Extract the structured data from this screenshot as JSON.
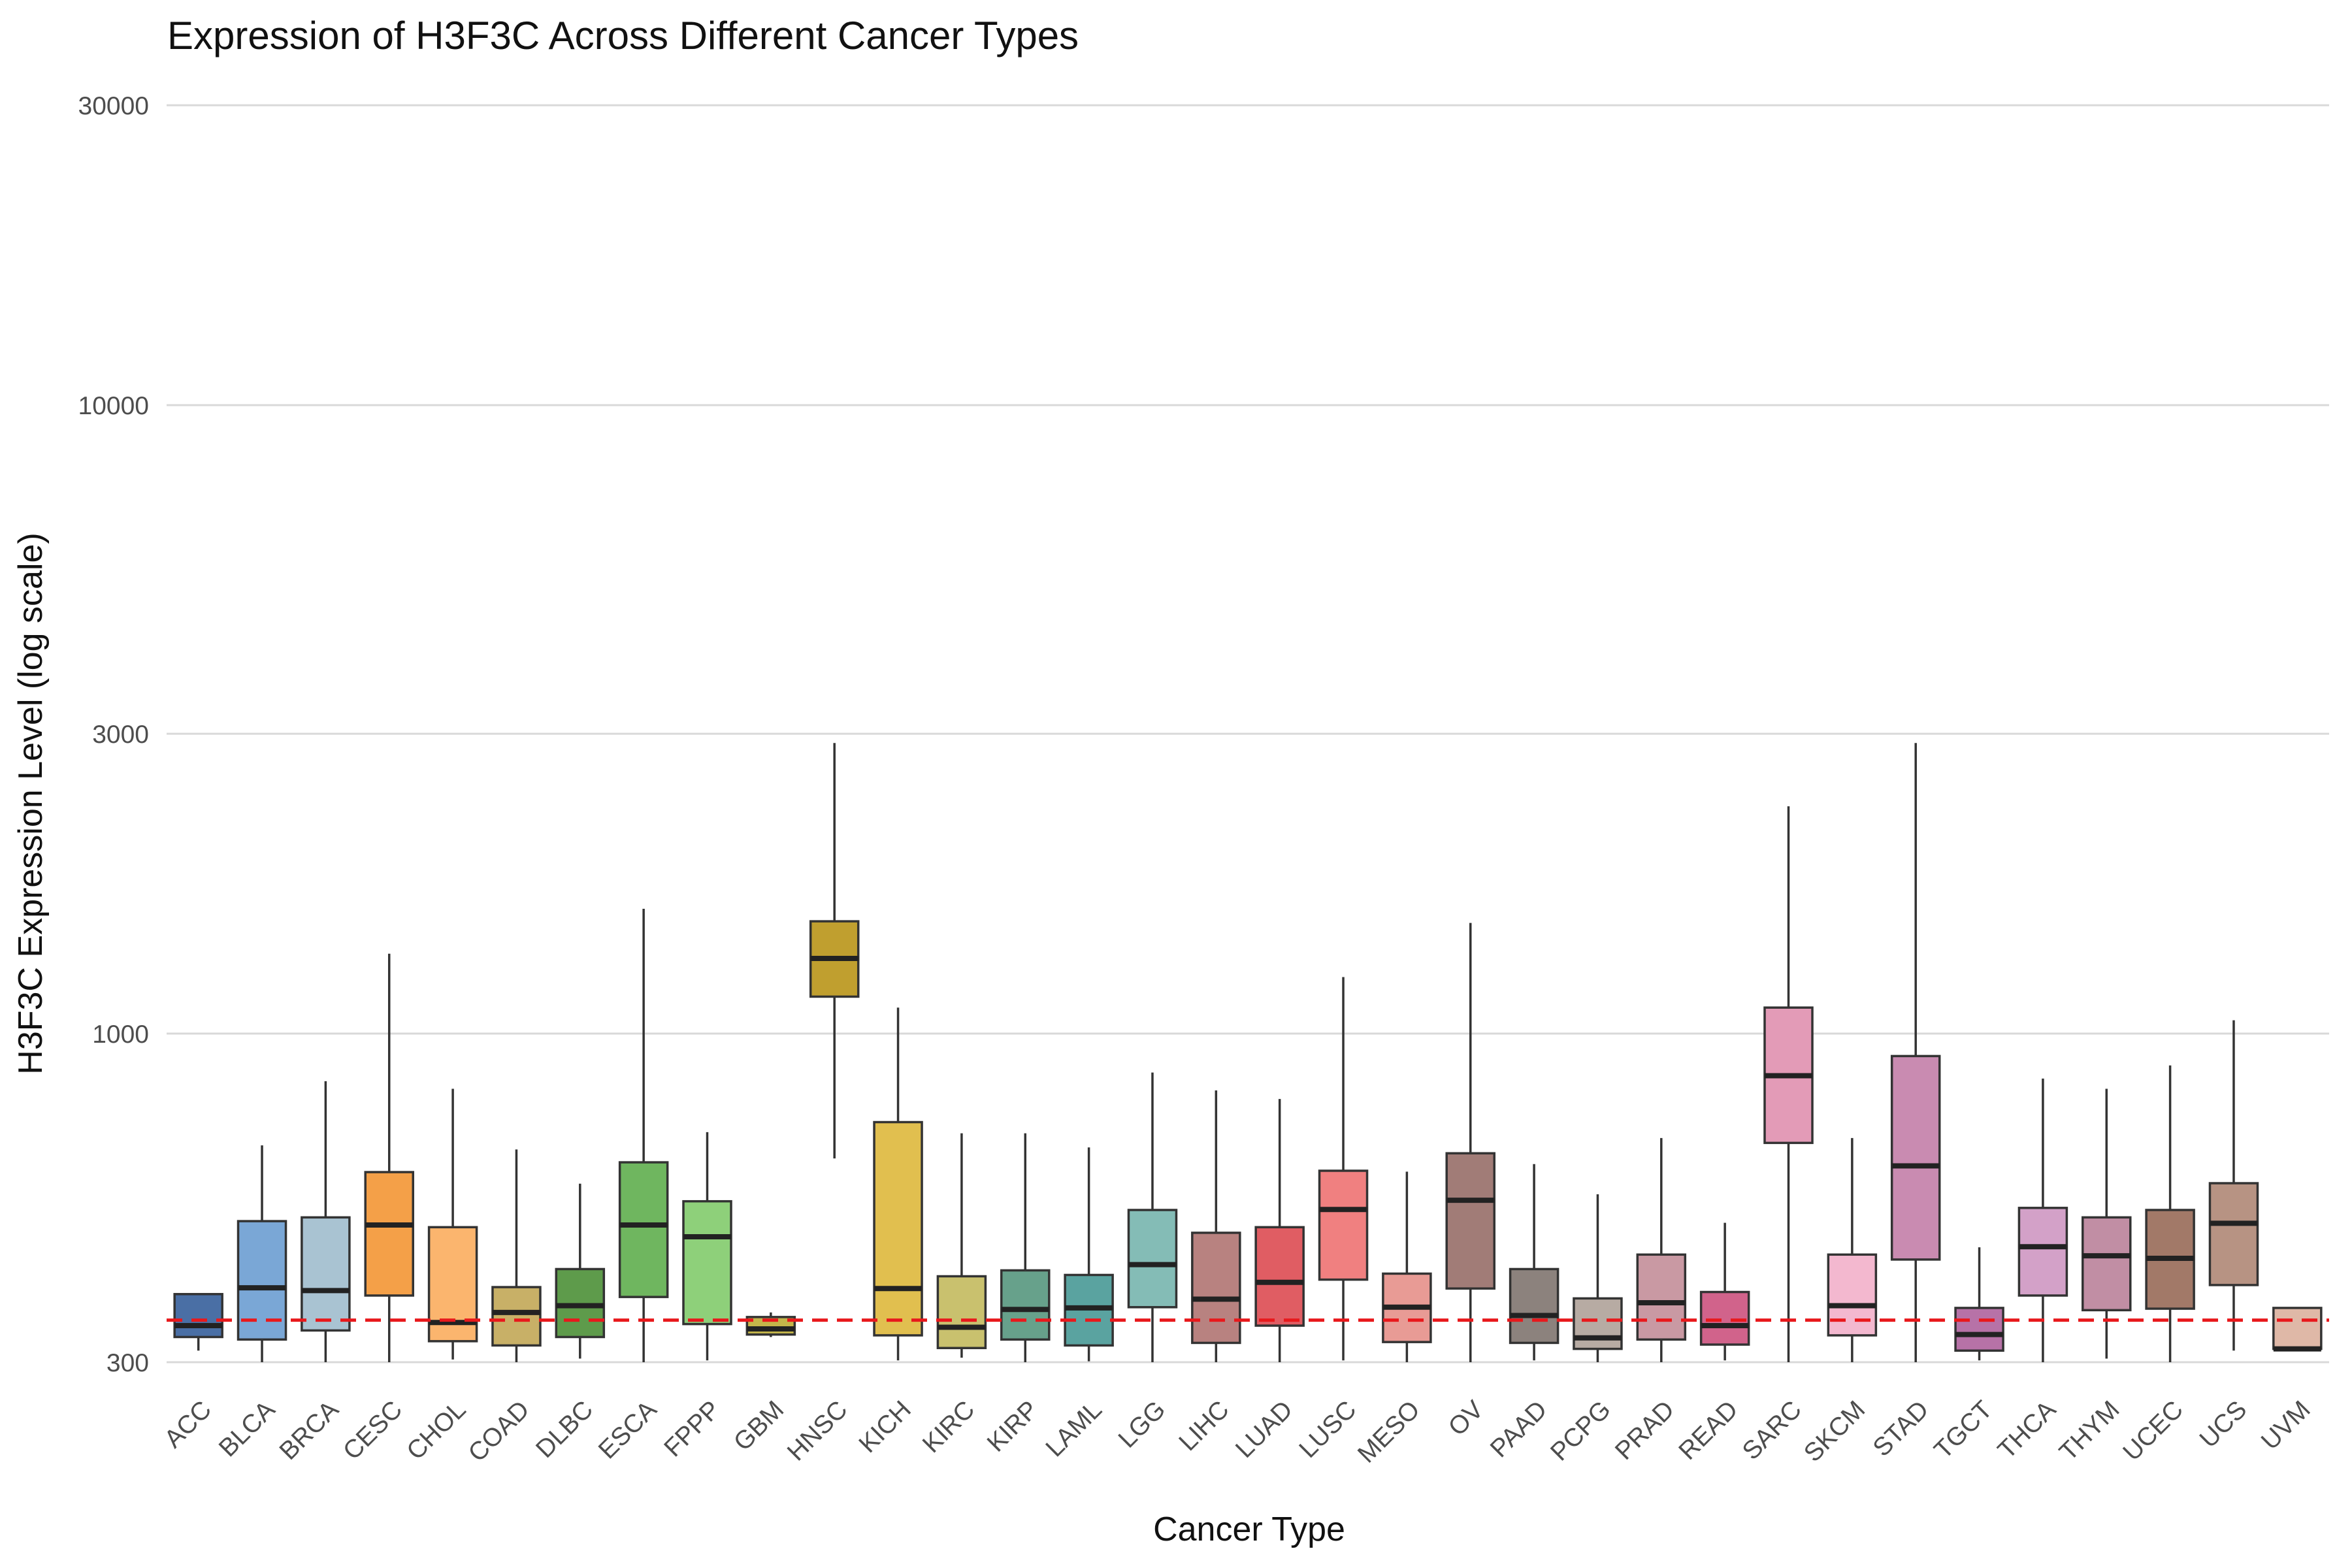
{
  "chart_data": {
    "type": "box",
    "title": "Expression of H3F3C Across Different Cancer Types",
    "xlabel": "Cancer Type",
    "ylabel": "H3F3C Expression Level (log scale)",
    "y_scale": "log",
    "ylim": [
      300,
      36000
    ],
    "y_ticks": [
      300,
      1000,
      3000,
      10000,
      30000
    ],
    "grid": "horizontal",
    "reference_line": {
      "y": 350,
      "style": "dashed",
      "color": "#e8191c"
    },
    "categories": [
      "ACC",
      "BLCA",
      "BRCA",
      "CESC",
      "CHOL",
      "COAD",
      "DLBC",
      "ESCA",
      "FPPP",
      "GBM",
      "HNSC",
      "KICH",
      "KIRC",
      "KIRP",
      "LAML",
      "LGG",
      "LIHC",
      "LUAD",
      "LUSC",
      "MESO",
      "OV",
      "PAAD",
      "PCPG",
      "PRAD",
      "READ",
      "SARC",
      "SKCM",
      "STAD",
      "TGCT",
      "THCA",
      "THYM",
      "UCEC",
      "UCS",
      "UVM"
    ],
    "series": [
      {
        "category": "ACC",
        "min": 313,
        "q1": 329,
        "median": 343,
        "q3": 385,
        "max": 385,
        "color": "#4a6fa5"
      },
      {
        "category": "BLCA",
        "min": 300,
        "q1": 326,
        "median": 394,
        "q3": 503,
        "max": 664,
        "color": "#7aa7d6"
      },
      {
        "category": "BRCA",
        "min": 300,
        "q1": 337,
        "median": 390,
        "q3": 510,
        "max": 840,
        "color": "#a9c3d2"
      },
      {
        "category": "CESC",
        "min": 300,
        "q1": 383,
        "median": 496,
        "q3": 602,
        "max": 1340,
        "color": "#f4a048"
      },
      {
        "category": "CHOL",
        "min": 303,
        "q1": 324,
        "median": 347,
        "q3": 492,
        "max": 817,
        "color": "#fbb56e"
      },
      {
        "category": "COAD",
        "min": 300,
        "q1": 319,
        "median": 360,
        "q3": 395,
        "max": 654,
        "color": "#c8b067"
      },
      {
        "category": "DLBC",
        "min": 304,
        "q1": 329,
        "median": 369,
        "q3": 422,
        "max": 577,
        "color": "#5e9b4b"
      },
      {
        "category": "ESCA",
        "min": 300,
        "q1": 381,
        "median": 496,
        "q3": 624,
        "max": 1580,
        "color": "#6fb65f"
      },
      {
        "category": "FPPP",
        "min": 302,
        "q1": 345,
        "median": 475,
        "q3": 541,
        "max": 697,
        "color": "#8ed07a"
      },
      {
        "category": "GBM",
        "min": 329,
        "q1": 332,
        "median": 339,
        "q3": 354,
        "max": 360,
        "color": "#c4b64a"
      },
      {
        "category": "HNSC",
        "min": 633,
        "q1": 1145,
        "median": 1317,
        "q3": 1509,
        "max": 2900,
        "color": "#c09f2f"
      },
      {
        "category": "KICH",
        "min": 302,
        "q1": 331,
        "median": 393,
        "q3": 723,
        "max": 1100,
        "color": "#e1bf4f"
      },
      {
        "category": "KIRC",
        "min": 305,
        "q1": 316,
        "median": 341,
        "q3": 411,
        "max": 694,
        "color": "#c9c16e"
      },
      {
        "category": "KIRP",
        "min": 300,
        "q1": 326,
        "median": 364,
        "q3": 420,
        "max": 694,
        "color": "#67a18b"
      },
      {
        "category": "LAML",
        "min": 301,
        "q1": 319,
        "median": 366,
        "q3": 413,
        "max": 659,
        "color": "#5aa3a0"
      },
      {
        "category": "LGG",
        "min": 300,
        "q1": 367,
        "median": 429,
        "q3": 524,
        "max": 867,
        "color": "#84bcb6"
      },
      {
        "category": "LIHC",
        "min": 300,
        "q1": 322,
        "median": 378,
        "q3": 482,
        "max": 812,
        "color": "#b88280"
      },
      {
        "category": "LUAD",
        "min": 300,
        "q1": 343,
        "median": 402,
        "q3": 492,
        "max": 787,
        "color": "#e05d63"
      },
      {
        "category": "LUSC",
        "min": 302,
        "q1": 406,
        "median": 525,
        "q3": 605,
        "max": 1230,
        "color": "#f08080"
      },
      {
        "category": "MESO",
        "min": 300,
        "q1": 323,
        "median": 367,
        "q3": 415,
        "max": 603,
        "color": "#e89b95"
      },
      {
        "category": "OV",
        "min": 300,
        "q1": 393,
        "median": 543,
        "q3": 645,
        "max": 1500,
        "color": "#a17c77"
      },
      {
        "category": "PAAD",
        "min": 302,
        "q1": 322,
        "median": 356,
        "q3": 422,
        "max": 620,
        "color": "#8c827d"
      },
      {
        "category": "PCPG",
        "min": 300,
        "q1": 315,
        "median": 328,
        "q3": 379,
        "max": 555,
        "color": "#b7aba3"
      },
      {
        "category": "PRAD",
        "min": 300,
        "q1": 326,
        "median": 373,
        "q3": 445,
        "max": 682,
        "color": "#c999a3"
      },
      {
        "category": "READ",
        "min": 302,
        "q1": 320,
        "median": 343,
        "q3": 388,
        "max": 500,
        "color": "#d1638b"
      },
      {
        "category": "SARC",
        "min": 300,
        "q1": 670,
        "median": 857,
        "q3": 1100,
        "max": 2300,
        "color": "#e39bb7"
      },
      {
        "category": "SKCM",
        "min": 300,
        "q1": 331,
        "median": 369,
        "q3": 445,
        "max": 682,
        "color": "#f3b8cf"
      },
      {
        "category": "STAD",
        "min": 300,
        "q1": 437,
        "median": 616,
        "q3": 921,
        "max": 2900,
        "color": "#c98bb1"
      },
      {
        "category": "TGCT",
        "min": 302,
        "q1": 313,
        "median": 332,
        "q3": 366,
        "max": 457,
        "color": "#b772a7"
      },
      {
        "category": "THCA",
        "min": 300,
        "q1": 383,
        "median": 458,
        "q3": 528,
        "max": 848,
        "color": "#d3a1c8"
      },
      {
        "category": "THYM",
        "min": 304,
        "q1": 363,
        "median": 443,
        "q3": 510,
        "max": 817,
        "color": "#c18ea4"
      },
      {
        "category": "UCEC",
        "min": 300,
        "q1": 365,
        "median": 439,
        "q3": 524,
        "max": 890,
        "color": "#a27968"
      },
      {
        "category": "UCS",
        "min": 313,
        "q1": 398,
        "median": 499,
        "q3": 578,
        "max": 1050,
        "color": "#b79383"
      },
      {
        "category": "UVM",
        "min": 315,
        "q1": 315,
        "median": 315,
        "q3": 366,
        "max": 366,
        "color": "#dfb8a7"
      }
    ]
  }
}
